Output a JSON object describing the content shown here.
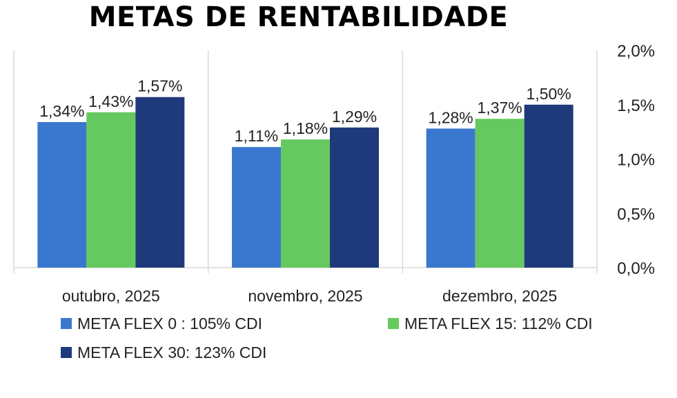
{
  "chart_data": {
    "type": "bar",
    "title": "METAS DE RENTABILIDADE",
    "categories": [
      "outubro, 2025",
      "novembro, 2025",
      "dezembro, 2025"
    ],
    "series": [
      {
        "name": "META FLEX 0 : 105% CDI",
        "color": "#3a78d0",
        "values": [
          1.34,
          1.11,
          1.28
        ],
        "labels": [
          "1,34%",
          "1,11%",
          "1,28%"
        ]
      },
      {
        "name": "META FLEX 15: 112% CDI",
        "color": "#66c95f",
        "values": [
          1.43,
          1.18,
          1.37
        ],
        "labels": [
          "1,43%",
          "1,18%",
          "1,37%"
        ]
      },
      {
        "name": "META FLEX 30: 123% CDI",
        "color": "#1f3a7a",
        "values": [
          1.57,
          1.29,
          1.5
        ],
        "labels": [
          "1,57%",
          "1,29%",
          "1,50%"
        ]
      }
    ],
    "ylim": [
      0,
      2.0
    ],
    "yticks": [
      0,
      0.5,
      1.0,
      1.5,
      2.0
    ],
    "ytick_labels": [
      "0,0%",
      "0,5%",
      "1,0%",
      "1,5%",
      "2,0%"
    ],
    "y_axis_side": "right",
    "grid": false,
    "legend_position": "bottom"
  }
}
